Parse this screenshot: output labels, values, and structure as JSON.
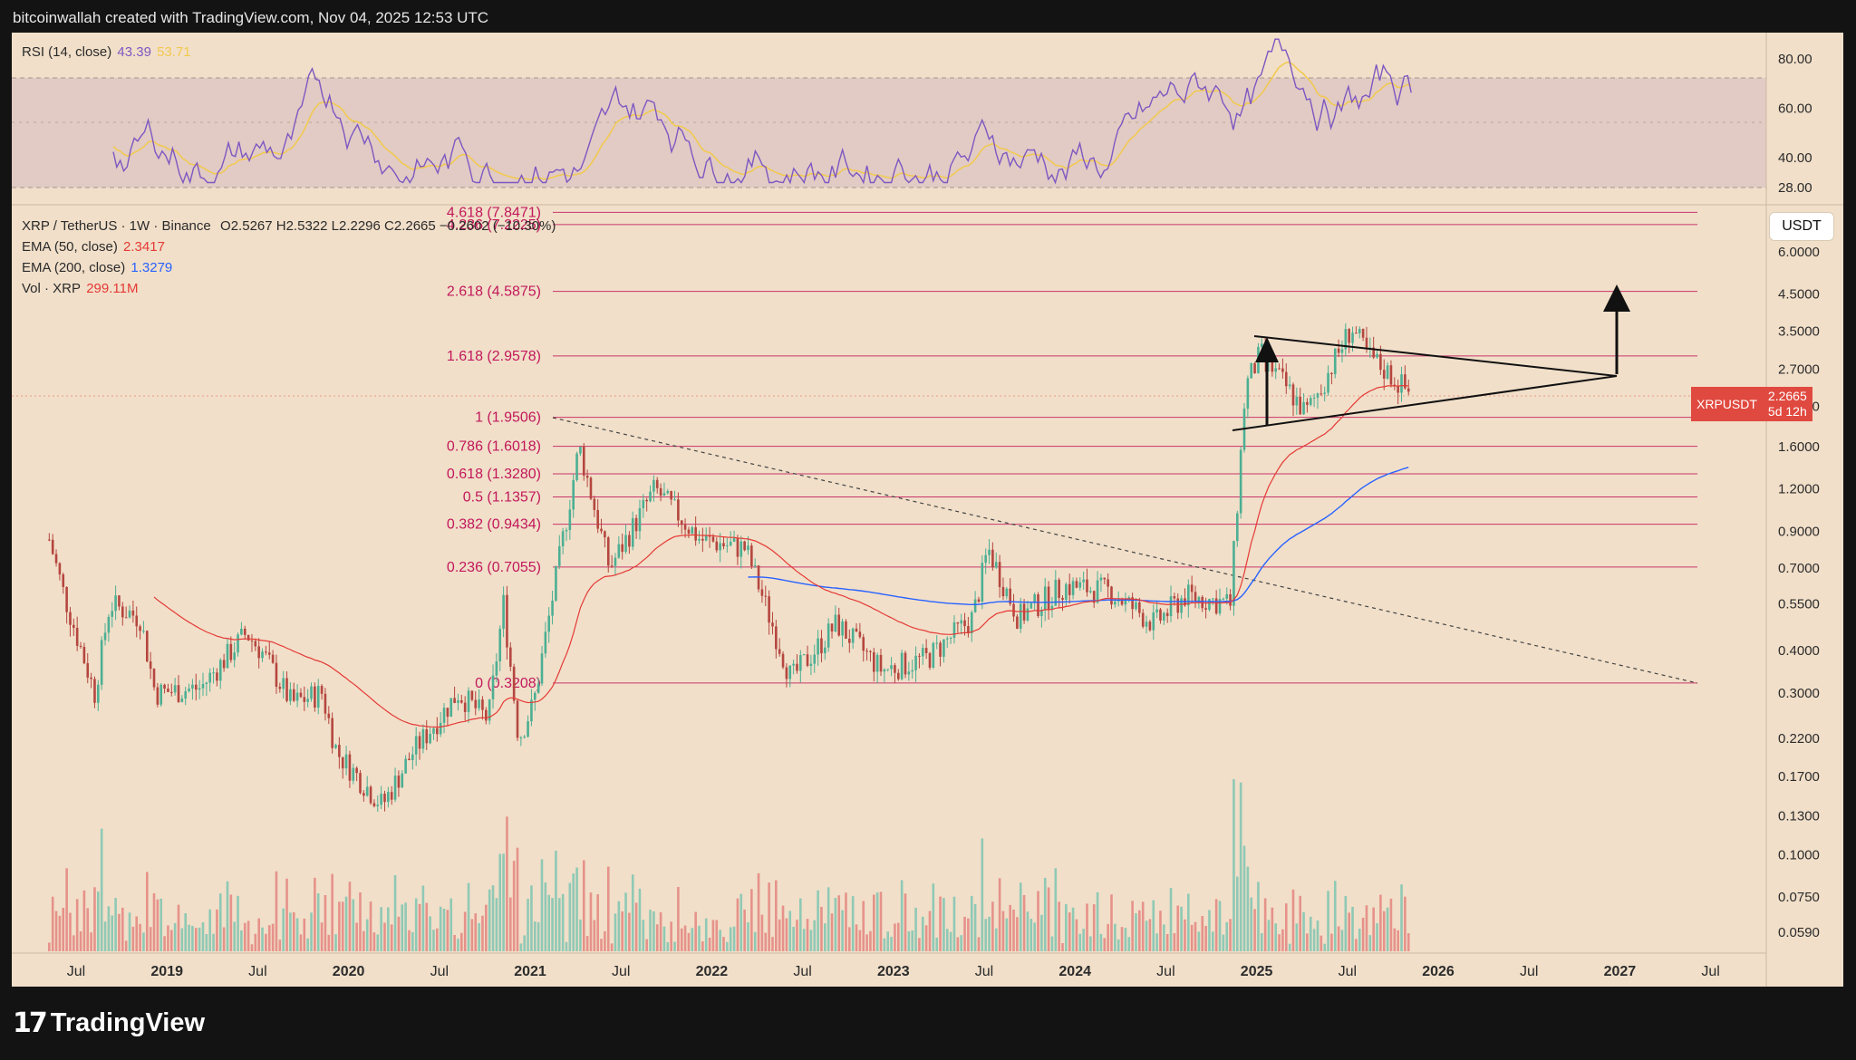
{
  "header": {
    "attribution": "bitcoinwallah created with TradingView.com, Nov 04, 2025 12:53 UTC",
    "brand": "TradingView"
  },
  "rsi_pane": {
    "label": "RSI (14, close)",
    "rsi_value": "43.39",
    "ma_value": "53.71",
    "ticks": [
      "80.00",
      "60.00",
      "40.00",
      "28.00"
    ],
    "colors": {
      "rsi": "#7e57c2",
      "ma": "#f2c94c",
      "band": "#e1cbc4"
    }
  },
  "legend": {
    "symbol": "XRP / TetherUS · 1W · Binance",
    "ohlc": "O2.5267  H2.5322  L2.2296  C2.2665  −0.2602 (−10.30%)",
    "ema50_label": "EMA (50, close)",
    "ema50_value": "2.3417",
    "ema200_label": "EMA (200, close)",
    "ema200_value": "1.3279",
    "vol_label": "Vol · XRP",
    "vol_value": "299.11M"
  },
  "currency_button": "USDT",
  "price_tag": {
    "symbol": "XRPUSDT",
    "price": "2.2665",
    "countdown": "5d 12h"
  },
  "chart_data": {
    "type": "candlestick",
    "symbol": "XRP / TetherUS",
    "interval": "1W",
    "exchange": "Binance",
    "ohlc_last": {
      "open": 2.5267,
      "high": 2.5322,
      "low": 2.2296,
      "close": 2.2665,
      "change": -0.2602,
      "change_pct": -10.3
    },
    "y_scale": "log",
    "y_ticks": [
      "6.0000",
      "4.5000",
      "3.5000",
      "2.7000",
      "2.1000",
      "1.6000",
      "1.2000",
      "0.9000",
      "0.7000",
      "0.5500",
      "0.4000",
      "0.3000",
      "0.2200",
      "0.1700",
      "0.1300",
      "0.1000",
      "0.0750",
      "0.0590"
    ],
    "x_ticks": [
      "Jul",
      "2019",
      "Jul",
      "2020",
      "Jul",
      "2021",
      "Jul",
      "2022",
      "Jul",
      "2023",
      "Jul",
      "2024",
      "Jul",
      "2025",
      "Jul",
      "2026",
      "Jul",
      "2027",
      "Jul"
    ],
    "fibonacci": [
      {
        "level": "4.618",
        "price": 7.8471,
        "label": "4.618 (7.8471)"
      },
      {
        "level": "4.236",
        "price": 7.2225,
        "label": "4.236 (7.2225)"
      },
      {
        "level": "2.618",
        "price": 4.5875,
        "label": "2.618 (4.5875)"
      },
      {
        "level": "1.618",
        "price": 2.9578,
        "label": "1.618 (2.9578)"
      },
      {
        "level": "1",
        "price": 1.9506,
        "label": "1 (1.9506)"
      },
      {
        "level": "0.786",
        "price": 1.6018,
        "label": "0.786 (1.6018)"
      },
      {
        "level": "0.618",
        "price": 1.328,
        "label": "0.618 (1.3280)"
      },
      {
        "level": "0.5",
        "price": 1.1357,
        "label": "0.5 (1.1357)"
      },
      {
        "level": "0.382",
        "price": 0.9434,
        "label": "0.382 (0.9434)"
      },
      {
        "level": "0.236",
        "price": 0.7055,
        "label": "0.236 (0.7055)"
      },
      {
        "level": "0",
        "price": 0.3208,
        "label": "0 (0.3208)"
      }
    ],
    "indicators": {
      "ema50": {
        "value": 2.3417,
        "color": "#e53935"
      },
      "ema200": {
        "value": 1.3279,
        "color": "#2962ff"
      },
      "volume_last": "299.11M"
    },
    "colors": {
      "up": "#4caf93",
      "down": "#b5463f",
      "fib": "#c2185b"
    },
    "price_path": [
      [
        "2018-05",
        0.85
      ],
      [
        "2018-06",
        0.58
      ],
      [
        "2018-08",
        0.3
      ],
      [
        "2018-09",
        0.55
      ],
      [
        "2018-11",
        0.5
      ],
      [
        "2018-12",
        0.3
      ],
      [
        "2019-03",
        0.31
      ],
      [
        "2019-06",
        0.45
      ],
      [
        "2019-07",
        0.4
      ],
      [
        "2019-09",
        0.28
      ],
      [
        "2019-11",
        0.3
      ],
      [
        "2019-12",
        0.2
      ],
      [
        "2020-03",
        0.14
      ],
      [
        "2020-05",
        0.2
      ],
      [
        "2020-08",
        0.3
      ],
      [
        "2020-10",
        0.25
      ],
      [
        "2020-11",
        0.55
      ],
      [
        "2020-12",
        0.22
      ],
      [
        "2021-01",
        0.28
      ],
      [
        "2021-02",
        0.5
      ],
      [
        "2021-04",
        1.6
      ],
      [
        "2021-06",
        0.7
      ],
      [
        "2021-09",
        1.2
      ],
      [
        "2021-12",
        0.85
      ],
      [
        "2022-03",
        0.8
      ],
      [
        "2022-06",
        0.33
      ],
      [
        "2022-09",
        0.48
      ],
      [
        "2022-12",
        0.35
      ],
      [
        "2023-03",
        0.38
      ],
      [
        "2023-06",
        0.5
      ],
      [
        "2023-07",
        0.8
      ],
      [
        "2023-09",
        0.5
      ],
      [
        "2023-12",
        0.62
      ],
      [
        "2024-03",
        0.6
      ],
      [
        "2024-06",
        0.48
      ],
      [
        "2024-08",
        0.58
      ],
      [
        "2024-11",
        0.55
      ],
      [
        "2024-12",
        2.4
      ],
      [
        "2025-01",
        3.0
      ],
      [
        "2025-03",
        2.3
      ],
      [
        "2025-04",
        2.0
      ],
      [
        "2025-05",
        2.4
      ],
      [
        "2025-07",
        3.6
      ],
      [
        "2025-08",
        3.0
      ],
      [
        "2025-10",
        2.5
      ],
      [
        "2025-11",
        2.2665
      ]
    ]
  }
}
